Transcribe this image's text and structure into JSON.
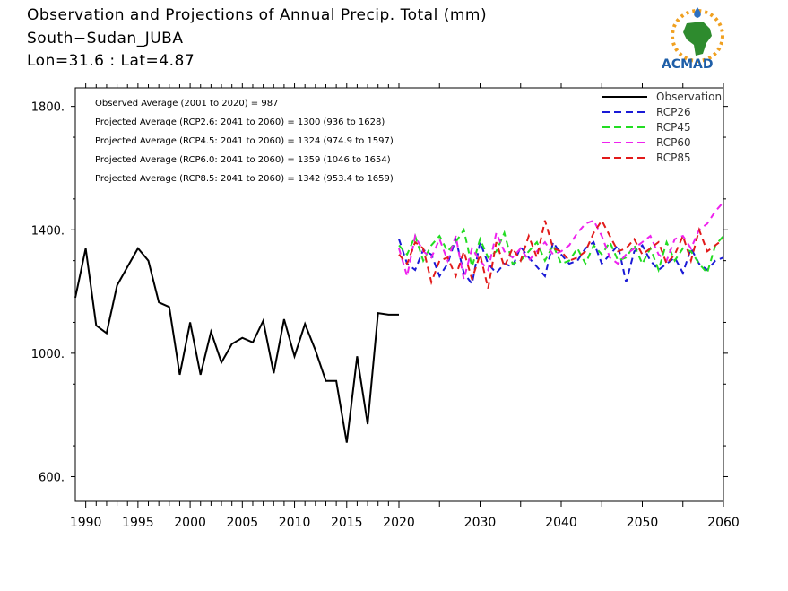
{
  "header": {
    "title_line1": "Observation and Projections of Annual Precip. Total (mm)",
    "title_line2": "South−Sudan_JUBA",
    "title_line3": "Lon=31.6 : Lat=4.87",
    "logo_text": "ACMAD"
  },
  "colors": {
    "observation": "#000000",
    "RCP26": "#1a1ad6",
    "RCP45": "#22dd22",
    "RCP60": "#ee22ee",
    "RCP85": "#e21a1a"
  },
  "chart_data": {
    "type": "line",
    "xlim": [
      1989,
      2060
    ],
    "ylim": [
      520,
      1860
    ],
    "yticks": [
      600,
      1000,
      1400,
      1800
    ],
    "ytick_labels": [
      "600.",
      "1000.",
      "1400.",
      "1800."
    ],
    "xticks_obs": [
      1990,
      1995,
      2000,
      2005,
      2010,
      2015,
      2020
    ],
    "xticks_proj": [
      2030,
      2040,
      2050,
      2060
    ],
    "xtick_labels_obs": [
      "1990",
      "1995",
      "2000",
      "2005",
      "2010",
      "2015",
      "2020"
    ],
    "xtick_labels_proj": [
      "2030",
      "2040",
      "2050",
      "2060"
    ],
    "annotations": [
      "Observed Average (2001 to 2020) = 987",
      "Projected Average (RCP2.6: 2041 to 2060) = 1300 (936 to 1628)",
      "Projected Average (RCP4.5: 2041 to 2060) = 1324 (974.9 to 1597)",
      "Projected Average (RCP6.0: 2041 to 2060) = 1359 (1046 to 1654)",
      "Projected Average (RCP8.5: 2041 to 2060) = 1342 (953.4 to 1659)"
    ],
    "legend_position": "top-right",
    "observation": {
      "name": "Observation",
      "x": [
        1989,
        1990,
        1991,
        1992,
        1993,
        1994,
        1995,
        1996,
        1997,
        1998,
        1999,
        2000,
        2001,
        2002,
        2003,
        2004,
        2005,
        2006,
        2007,
        2008,
        2009,
        2010,
        2011,
        2012,
        2013,
        2014,
        2015,
        2016,
        2017,
        2018,
        2019,
        2020
      ],
      "values": [
        1180,
        1340,
        1090,
        1065,
        1220,
        1280,
        1340,
        1300,
        1165,
        1150,
        930,
        1100,
        930,
        1070,
        970,
        1030,
        1050,
        1035,
        1105,
        935,
        1110,
        990,
        1095,
        1010,
        910,
        910,
        710,
        990,
        770,
        1130,
        1125,
        1125
      ]
    },
    "series": [
      {
        "name": "RCP26",
        "x_start": 2020,
        "values": [
          1370,
          1290,
          1270,
          1335,
          1320,
          1250,
          1290,
          1370,
          1260,
          1225,
          1360,
          1290,
          1260,
          1290,
          1280,
          1345,
          1310,
          1280,
          1250,
          1360,
          1320,
          1290,
          1300,
          1340,
          1360,
          1290,
          1320,
          1350,
          1230,
          1330,
          1350,
          1300,
          1270,
          1290,
          1310,
          1260,
          1340,
          1290,
          1270,
          1300,
          1310
        ]
      },
      {
        "name": "RCP45",
        "x_start": 2020,
        "values": [
          1350,
          1320,
          1380,
          1300,
          1350,
          1380,
          1330,
          1360,
          1400,
          1280,
          1370,
          1310,
          1330,
          1390,
          1290,
          1300,
          1330,
          1360,
          1300,
          1350,
          1290,
          1300,
          1340,
          1290,
          1350,
          1320,
          1360,
          1300,
          1310,
          1350,
          1290,
          1340,
          1270,
          1360,
          1300,
          1340,
          1330,
          1290,
          1260,
          1350,
          1380
        ]
      },
      {
        "name": "RCP60",
        "x_start": 2020,
        "values": [
          1340,
          1250,
          1380,
          1330,
          1310,
          1370,
          1300,
          1380,
          1240,
          1340,
          1300,
          1270,
          1390,
          1330,
          1310,
          1340,
          1300,
          1330,
          1360,
          1320,
          1330,
          1350,
          1390,
          1420,
          1430,
          1380,
          1310,
          1290,
          1320,
          1340,
          1360,
          1380,
          1320,
          1300,
          1370,
          1380,
          1340,
          1400,
          1420,
          1460,
          1490
        ]
      },
      {
        "name": "RCP85",
        "x_start": 2020,
        "values": [
          1320,
          1290,
          1360,
          1340,
          1230,
          1300,
          1310,
          1250,
          1330,
          1240,
          1320,
          1210,
          1360,
          1280,
          1340,
          1300,
          1380,
          1310,
          1430,
          1340,
          1330,
          1300,
          1310,
          1330,
          1390,
          1430,
          1380,
          1330,
          1340,
          1370,
          1320,
          1340,
          1360,
          1290,
          1320,
          1380,
          1300,
          1400,
          1330,
          1350,
          1370
        ]
      }
    ]
  }
}
